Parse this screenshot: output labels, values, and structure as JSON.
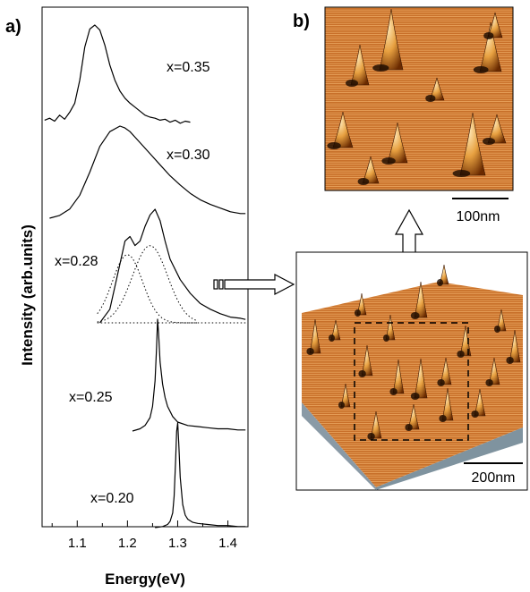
{
  "panel_labels": {
    "a": "a)",
    "b": "b)"
  },
  "chart_data": {
    "type": "line",
    "xlabel": "Energy(eV)",
    "ylabel": "Intensity (arb.units)",
    "xlim": [
      1.03,
      1.44
    ],
    "x_ticks": [
      "1.1",
      "1.2",
      "1.3",
      "1.4"
    ],
    "x_tick_values": [
      1.1,
      1.2,
      1.3,
      1.4
    ],
    "y_ticks": "none",
    "series": [
      {
        "name": "x=0.35",
        "label": "x=0.35",
        "x": [
          1.035,
          1.045,
          1.055,
          1.065,
          1.075,
          1.085,
          1.095,
          1.105,
          1.115,
          1.125,
          1.135,
          1.145,
          1.155,
          1.165,
          1.175,
          1.185,
          1.195,
          1.205,
          1.215,
          1.225,
          1.235,
          1.245,
          1.255,
          1.265,
          1.275,
          1.285,
          1.295,
          1.305,
          1.315,
          1.325
        ],
        "y": [
          0.05,
          0.07,
          0.04,
          0.1,
          0.06,
          0.13,
          0.22,
          0.45,
          0.78,
          0.96,
          1.0,
          0.95,
          0.8,
          0.6,
          0.45,
          0.34,
          0.27,
          0.22,
          0.18,
          0.14,
          0.1,
          0.08,
          0.07,
          0.05,
          0.06,
          0.03,
          0.05,
          0.02,
          0.04,
          0.03
        ]
      },
      {
        "name": "x=0.30",
        "label": "x=0.30",
        "x": [
          1.045,
          1.065,
          1.085,
          1.105,
          1.125,
          1.145,
          1.165,
          1.185,
          1.195,
          1.205,
          1.215,
          1.225,
          1.245,
          1.265,
          1.285,
          1.305,
          1.325,
          1.345,
          1.365,
          1.385,
          1.405,
          1.425,
          1.435
        ],
        "y": [
          0.0,
          0.03,
          0.1,
          0.25,
          0.5,
          0.78,
          0.94,
          1.0,
          0.98,
          0.94,
          0.88,
          0.82,
          0.7,
          0.58,
          0.46,
          0.36,
          0.27,
          0.2,
          0.15,
          0.11,
          0.07,
          0.05,
          0.05
        ]
      },
      {
        "name": "x=0.28",
        "label": "x=0.28",
        "x": [
          1.145,
          1.165,
          1.185,
          1.195,
          1.205,
          1.215,
          1.225,
          1.235,
          1.245,
          1.255,
          1.265,
          1.275,
          1.285,
          1.305,
          1.325,
          1.345,
          1.365,
          1.385,
          1.405,
          1.425,
          1.435
        ],
        "y": [
          0.0,
          0.12,
          0.52,
          0.72,
          0.76,
          0.68,
          0.72,
          0.85,
          0.95,
          1.0,
          0.9,
          0.72,
          0.56,
          0.38,
          0.26,
          0.17,
          0.12,
          0.08,
          0.05,
          0.04,
          0.03
        ]
      },
      {
        "name": "x=0.25",
        "label": "x=0.25",
        "x": [
          1.21,
          1.225,
          1.235,
          1.245,
          1.25,
          1.255,
          1.258,
          1.26,
          1.262,
          1.265,
          1.27,
          1.275,
          1.28,
          1.29,
          1.3,
          1.32,
          1.34,
          1.36,
          1.38,
          1.4,
          1.42,
          1.435
        ],
        "y": [
          0.0,
          0.02,
          0.05,
          0.12,
          0.22,
          0.45,
          0.75,
          1.0,
          0.88,
          0.62,
          0.42,
          0.3,
          0.22,
          0.13,
          0.08,
          0.05,
          0.04,
          0.03,
          0.02,
          0.02,
          0.01,
          0.01
        ]
      },
      {
        "name": "x=0.20",
        "label": "x=0.20",
        "x": [
          1.255,
          1.27,
          1.28,
          1.285,
          1.29,
          1.293,
          1.296,
          1.298,
          1.3,
          1.302,
          1.305,
          1.31,
          1.315,
          1.32,
          1.33,
          1.34,
          1.36,
          1.38,
          1.4,
          1.42,
          1.435
        ],
        "y": [
          0.0,
          0.01,
          0.03,
          0.06,
          0.14,
          0.3,
          0.65,
          0.92,
          1.0,
          0.82,
          0.48,
          0.22,
          0.12,
          0.08,
          0.05,
          0.04,
          0.03,
          0.02,
          0.02,
          0.01,
          0.01
        ]
      }
    ],
    "fit_components_x028": [
      {
        "center": 1.2,
        "width": 0.03,
        "height": 0.6
      },
      {
        "center": 1.245,
        "width": 0.035,
        "height": 0.68
      }
    ]
  },
  "images": {
    "afm_zoom": {
      "scale_label": "100nm"
    },
    "afm_3d": {
      "scale_label": "200nm"
    }
  }
}
